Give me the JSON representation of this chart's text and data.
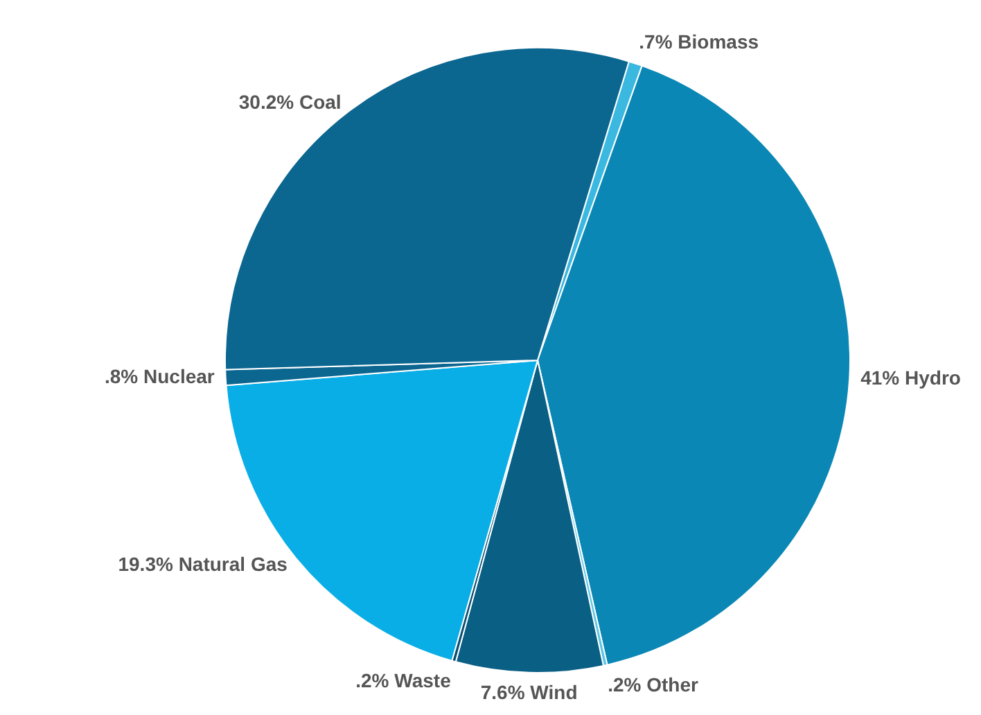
{
  "chart_data": {
    "type": "pie",
    "categories": [
      "Biomass",
      "Hydro",
      "Other",
      "Wind",
      "Waste",
      "Natural Gas",
      "Nuclear",
      "Coal"
    ],
    "values": [
      0.7,
      41,
      0.2,
      7.6,
      0.2,
      19.3,
      0.8,
      30.2
    ],
    "value_labels": [
      ".7%",
      "41%",
      ".2%",
      "7.6%",
      ".2%",
      "19.3%",
      ".8%",
      "30.2%"
    ],
    "colors": [
      "#3bb8e0",
      "#0a87b5",
      "#5cc4e6",
      "#0a5f85",
      "#0a4f70",
      "#0aaee6",
      "#0b6690",
      "#0b6690"
    ],
    "legend": false
  }
}
